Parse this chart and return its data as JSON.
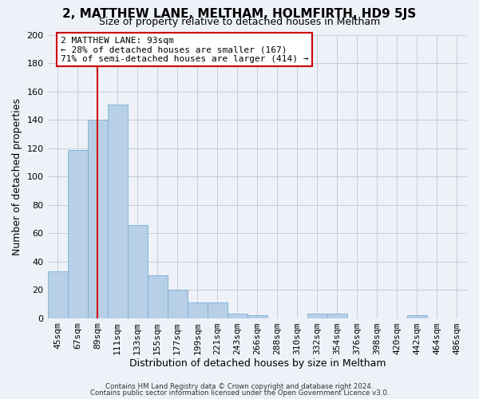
{
  "title": "2, MATTHEW LANE, MELTHAM, HOLMFIRTH, HD9 5JS",
  "subtitle": "Size of property relative to detached houses in Meltham",
  "xlabel": "Distribution of detached houses by size in Meltham",
  "ylabel": "Number of detached properties",
  "bar_labels": [
    "45sqm",
    "67sqm",
    "89sqm",
    "111sqm",
    "133sqm",
    "155sqm",
    "177sqm",
    "199sqm",
    "221sqm",
    "243sqm",
    "266sqm",
    "288sqm",
    "310sqm",
    "332sqm",
    "354sqm",
    "376sqm",
    "398sqm",
    "420sqm",
    "442sqm",
    "464sqm",
    "486sqm"
  ],
  "bar_values": [
    33,
    119,
    140,
    151,
    66,
    30,
    20,
    11,
    11,
    3,
    2,
    0,
    0,
    3,
    3,
    0,
    0,
    0,
    2,
    0,
    0
  ],
  "bar_color": "#b8cfe8",
  "bar_edgecolor": "#7aafd4",
  "vline_x": 2,
  "vline_color": "#cc0000",
  "ylim": [
    0,
    200
  ],
  "yticks": [
    0,
    20,
    40,
    60,
    80,
    100,
    120,
    140,
    160,
    180,
    200
  ],
  "bg_color": "#eef2f8",
  "grid_color": "#c5cdd8",
  "annotation_title": "2 MATTHEW LANE: 93sqm",
  "annotation_line1": "← 28% of detached houses are smaller (167)",
  "annotation_line2": "71% of semi-detached houses are larger (414) →",
  "annotation_box_color": "#cc0000",
  "footnote1": "Contains HM Land Registry data © Crown copyright and database right 2024.",
  "footnote2": "Contains public sector information licensed under the Open Government Licence v3.0."
}
